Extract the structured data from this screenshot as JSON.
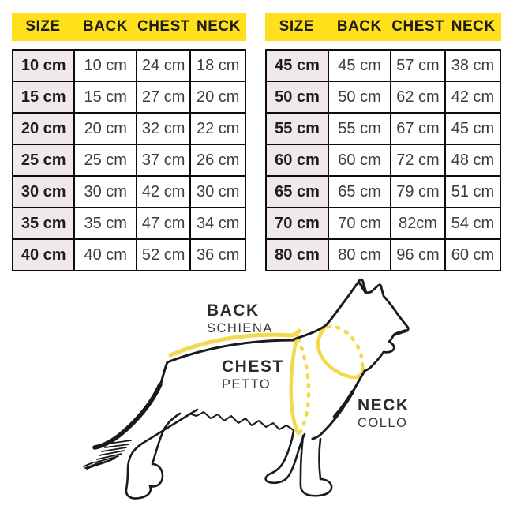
{
  "tables": [
    {
      "headers": [
        "SIZE",
        "BACK",
        "CHEST",
        "NECK"
      ],
      "rows": [
        [
          "10 cm",
          "10 cm",
          "24 cm",
          "18 cm"
        ],
        [
          "15 cm",
          "15 cm",
          "27 cm",
          "20 cm"
        ],
        [
          "20 cm",
          "20 cm",
          "32 cm",
          "22 cm"
        ],
        [
          "25 cm",
          "25 cm",
          "37 cm",
          "26 cm"
        ],
        [
          "30 cm",
          "30 cm",
          "42 cm",
          "30 cm"
        ],
        [
          "35 cm",
          "35 cm",
          "47 cm",
          "34 cm"
        ],
        [
          "40 cm",
          "40 cm",
          "52 cm",
          "36 cm"
        ]
      ]
    },
    {
      "headers": [
        "SIZE",
        "BACK",
        "CHEST",
        "NECK"
      ],
      "rows": [
        [
          "45 cm",
          "45 cm",
          "57 cm",
          "38 cm"
        ],
        [
          "50 cm",
          "50 cm",
          "62 cm",
          "42 cm"
        ],
        [
          "55 cm",
          "55 cm",
          "67 cm",
          "45 cm"
        ],
        [
          "60 cm",
          "60 cm",
          "72 cm",
          "48 cm"
        ],
        [
          "65 cm",
          "65 cm",
          "79 cm",
          "51 cm"
        ],
        [
          "70 cm",
          "70 cm",
          "82cm",
          "54 cm"
        ],
        [
          "80 cm",
          "80 cm",
          "96 cm",
          "60 cm"
        ]
      ]
    }
  ],
  "diagram": {
    "back_label": "BACK",
    "back_sublabel": "SCHIENA",
    "chest_label": "CHEST",
    "chest_sublabel": "PETTO",
    "neck_label": "NECK",
    "neck_sublabel": "COLLO",
    "dog_icon": "german-shepherd-line-art"
  },
  "colors": {
    "header_yellow": "#ffe01b",
    "size_column_pink": "#f1e8ee",
    "measure_line_yellow": "#f3d94b",
    "text_dark": "#1d1d1b"
  }
}
